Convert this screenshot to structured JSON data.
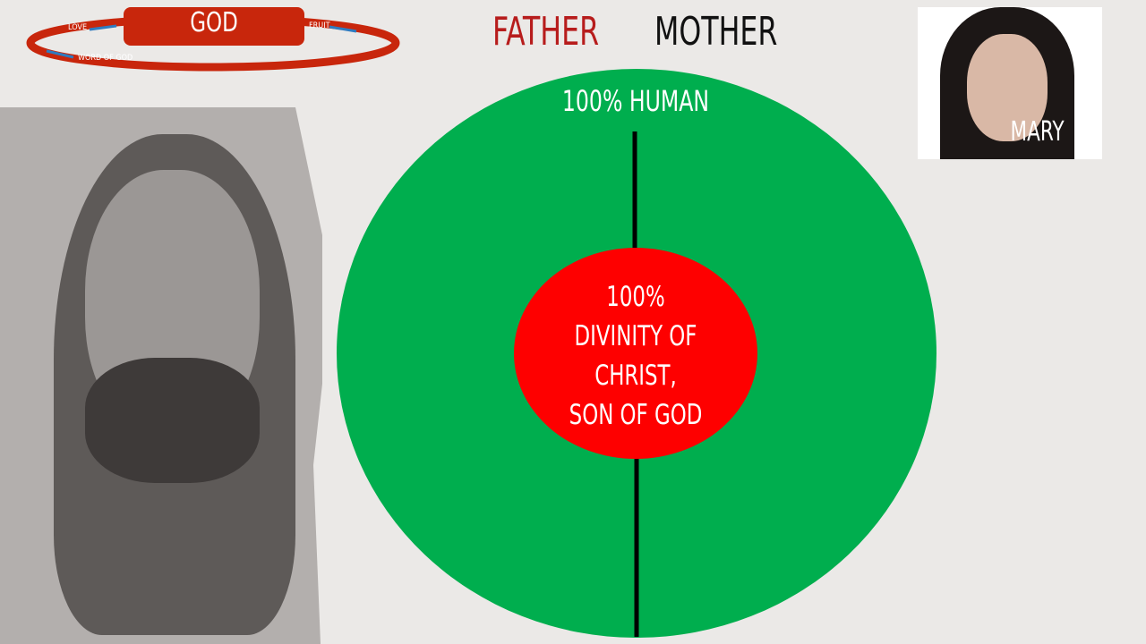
{
  "logo": {
    "center": "GOD",
    "left_label": "LOVE",
    "right_label": "FRUIT",
    "bottom_label": "WORD OF GOD"
  },
  "header": {
    "father": "FATHER",
    "mother": "MOTHER"
  },
  "diagram": {
    "outer_label": "100% HUMAN",
    "inner_lines": [
      "100%",
      "DIVINITY OF",
      "CHRIST,",
      "SON OF GOD"
    ]
  },
  "portrait": {
    "label": "MARY"
  },
  "colors": {
    "outer": "#00ae4e",
    "inner": "#fe0000",
    "father": "#b71c1c",
    "logo": "#c8260c",
    "background": "#ebe9e7"
  }
}
